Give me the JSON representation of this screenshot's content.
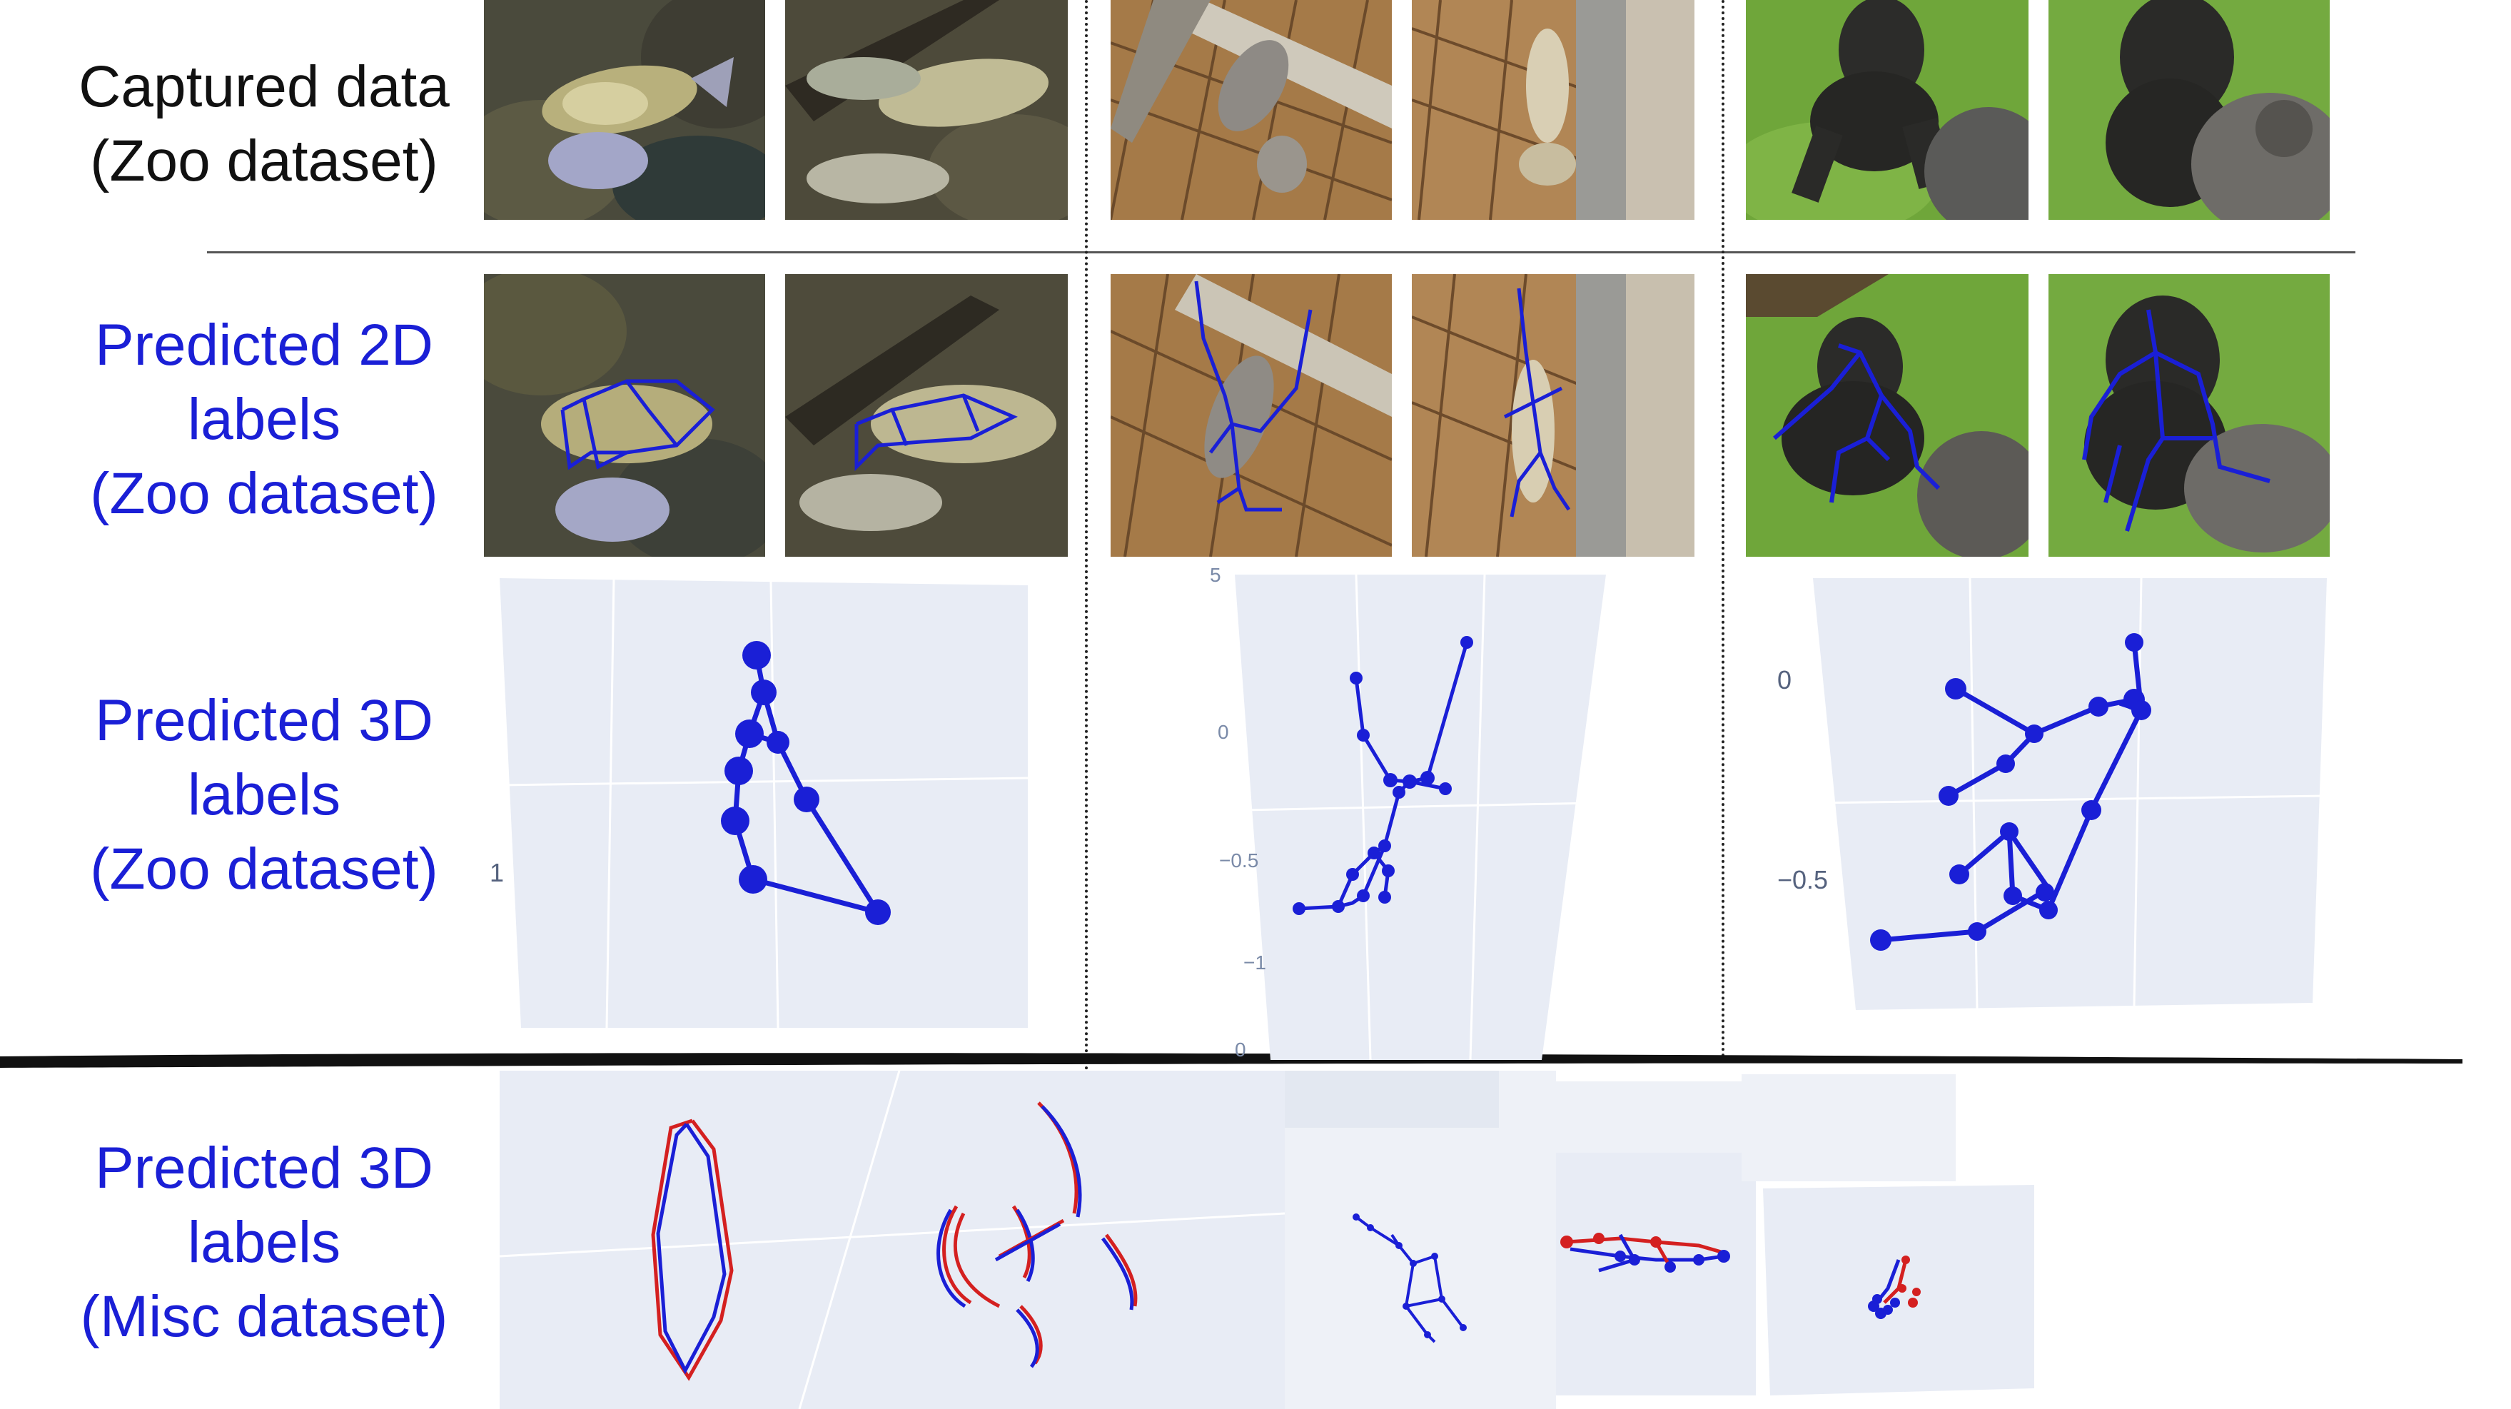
{
  "rows": {
    "captured": {
      "lines": [
        "Captured data",
        "(Zoo dataset)"
      ],
      "color": "#111111"
    },
    "pred2d": {
      "lines": [
        "Predicted 2D",
        "labels",
        "(Zoo dataset)"
      ],
      "color": "#1a1fd6"
    },
    "pred3d_zoo": {
      "lines": [
        "Predicted 3D",
        "labels",
        "(Zoo dataset)"
      ],
      "color": "#1a1fd6"
    },
    "pred3d_misc": {
      "lines": [
        "Predicted 3D",
        "labels",
        "(Misc dataset)"
      ],
      "color": "#1a1fd6"
    }
  },
  "plot_ticks": {
    "fish": {
      "left": "1"
    },
    "gibbon": {
      "top": "5",
      "t0": "0",
      "t1": "−0.5",
      "t2": "−1",
      "t3": "0"
    },
    "gorilla": {
      "t0": "0",
      "t1": "−0.5"
    }
  },
  "colors": {
    "skeleton_blue": "#1a1fd6",
    "skeleton_red": "#d42020",
    "plot_bg": "#e8ecf5",
    "label_blue": "#1a1fd6"
  },
  "icons": [
    "fish-photo",
    "gibbon-photo",
    "gorilla-photo",
    "skeleton-plot"
  ]
}
